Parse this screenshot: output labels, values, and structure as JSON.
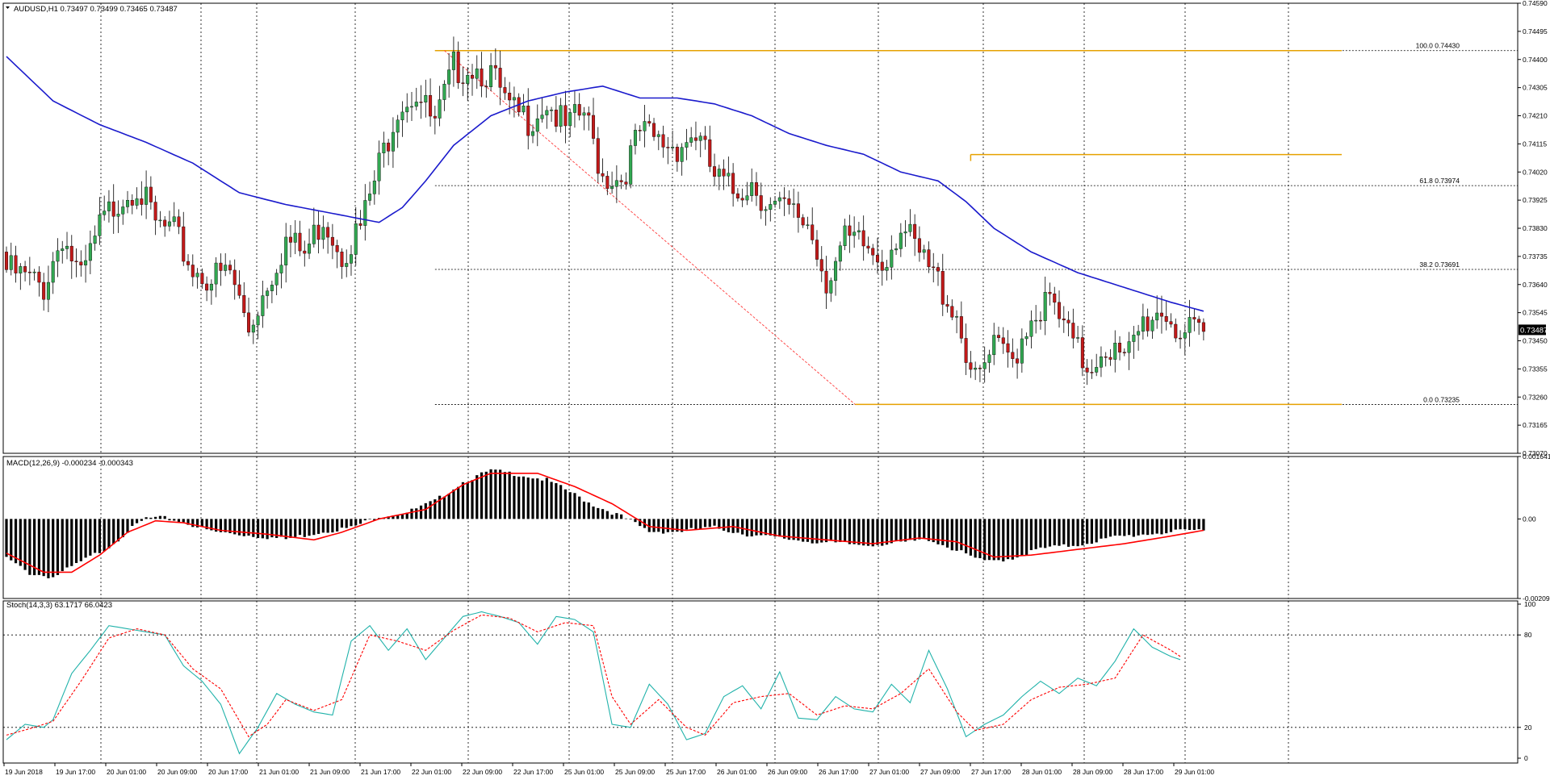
{
  "colors": {
    "background": "#ffffff",
    "grid": "#000000",
    "bull_body": "#32a852",
    "bear_body": "#c21a1a",
    "wick": "#000000",
    "ma_line": "#1a1acc",
    "fib_lines": "#e6a100",
    "fib_trend": "#ff3b3b",
    "macd_hist": "#000000",
    "macd_signal": "#ff0000",
    "stoch_main": "#20b2aa",
    "stoch_signal": "#ff0000",
    "price_badge_bg": "#000000",
    "price_badge_text": "#ffffff"
  },
  "header": {
    "symbol_label": "AUDUSD,H1  0.73497 0.73499 0.73465 0.73487",
    "dropdown_icon": "triangle-down-icon"
  },
  "current_price": "0.73487",
  "chart_data": [
    {
      "type": "candlestick",
      "panel": "price",
      "title": "AUDUSD,H1  0.73497 0.73499 0.73465 0.73487",
      "ylim": [
        0.7307,
        0.7459
      ],
      "y_tick_labels": [
        "0.74590",
        "0.74495",
        "0.74400",
        "0.74305",
        "0.74210",
        "0.74115",
        "0.74020",
        "0.73925",
        "0.73830",
        "0.73735",
        "0.73640",
        "0.73545",
        "0.73450",
        "0.73355",
        "0.73260",
        "0.73165",
        "0.73070"
      ],
      "x_tick_labels": [
        "19 Jun 2018",
        "19 Jun 17:00",
        "20 Jun 01:00",
        "20 Jun 09:00",
        "20 Jun 17:00",
        "21 Jun 01:00",
        "21 Jun 09:00",
        "21 Jun 17:00",
        "22 Jun 01:00",
        "22 Jun 09:00",
        "22 Jun 17:00",
        "25 Jun 01:00",
        "25 Jun 09:00",
        "25 Jun 17:00",
        "26 Jun 01:00",
        "26 Jun 09:00",
        "26 Jun 17:00",
        "27 Jun 01:00",
        "27 Jun 09:00",
        "27 Jun 17:00",
        "28 Jun 01:00",
        "28 Jun 09:00",
        "28 Jun 17:00",
        "29 Jun 01:00"
      ],
      "close_series_knots": [
        [
          0,
          0.7372
        ],
        [
          8,
          0.7366
        ],
        [
          12,
          0.7384
        ],
        [
          16,
          0.7368
        ],
        [
          20,
          0.7386
        ],
        [
          24,
          0.7396
        ],
        [
          28,
          0.7401
        ],
        [
          32,
          0.7387
        ],
        [
          36,
          0.7384
        ],
        [
          40,
          0.7372
        ],
        [
          44,
          0.7369
        ],
        [
          48,
          0.7371
        ],
        [
          52,
          0.7352
        ],
        [
          56,
          0.7368
        ],
        [
          60,
          0.7382
        ],
        [
          64,
          0.7377
        ],
        [
          68,
          0.739
        ],
        [
          72,
          0.7378
        ],
        [
          76,
          0.7386
        ],
        [
          80,
          0.7407
        ],
        [
          84,
          0.7428
        ],
        [
          88,
          0.7432
        ],
        [
          92,
          0.742
        ],
        [
          96,
          0.744
        ],
        [
          100,
          0.7441
        ],
        [
          104,
          0.7438
        ],
        [
          108,
          0.7425
        ],
        [
          112,
          0.7423
        ],
        [
          116,
          0.7429
        ],
        [
          120,
          0.7419
        ],
        [
          124,
          0.7425
        ],
        [
          128,
          0.7404
        ],
        [
          132,
          0.7403
        ],
        [
          136,
          0.7418
        ],
        [
          140,
          0.7415
        ],
        [
          144,
          0.7414
        ],
        [
          148,
          0.7418
        ],
        [
          152,
          0.7403
        ],
        [
          156,
          0.7398
        ],
        [
          160,
          0.7402
        ],
        [
          164,
          0.7393
        ],
        [
          168,
          0.7391
        ],
        [
          172,
          0.7388
        ],
        [
          176,
          0.7369
        ],
        [
          180,
          0.7381
        ],
        [
          184,
          0.738
        ],
        [
          188,
          0.7375
        ],
        [
          192,
          0.7387
        ],
        [
          196,
          0.7376
        ],
        [
          200,
          0.7368
        ],
        [
          204,
          0.7357
        ],
        [
          208,
          0.7333
        ],
        [
          212,
          0.7345
        ],
        [
          216,
          0.7342
        ],
        [
          220,
          0.7357
        ],
        [
          224,
          0.7361
        ],
        [
          228,
          0.7349
        ],
        [
          232,
          0.7339
        ],
        [
          236,
          0.7347
        ],
        [
          240,
          0.734
        ],
        [
          244,
          0.7354
        ],
        [
          248,
          0.7359
        ],
        [
          252,
          0.7351
        ],
        [
          256,
          0.7349
        ]
      ],
      "moving_average": [
        [
          0,
          0.7441
        ],
        [
          10,
          0.7426
        ],
        [
          20,
          0.7418
        ],
        [
          30,
          0.7412
        ],
        [
          40,
          0.7405
        ],
        [
          50,
          0.7395
        ],
        [
          60,
          0.7391
        ],
        [
          70,
          0.7388
        ],
        [
          80,
          0.7385
        ],
        [
          85,
          0.739
        ],
        [
          90,
          0.7399
        ],
        [
          96,
          0.7411
        ],
        [
          104,
          0.7421
        ],
        [
          112,
          0.7426
        ],
        [
          120,
          0.7429
        ],
        [
          128,
          0.7431
        ],
        [
          136,
          0.7427
        ],
        [
          144,
          0.7427
        ],
        [
          152,
          0.7425
        ],
        [
          160,
          0.7421
        ],
        [
          168,
          0.7415
        ],
        [
          176,
          0.7411
        ],
        [
          184,
          0.7408
        ],
        [
          192,
          0.7402
        ],
        [
          200,
          0.7399
        ],
        [
          206,
          0.7392
        ],
        [
          212,
          0.7383
        ],
        [
          220,
          0.7375
        ],
        [
          230,
          0.7368
        ],
        [
          240,
          0.7363
        ],
        [
          250,
          0.7358
        ],
        [
          257,
          0.7355
        ]
      ],
      "fibonacci": {
        "high": 0.7443,
        "low": 0.73235,
        "levels": [
          {
            "label": "100.0  0.74430",
            "value": 0.7443
          },
          {
            "label": "61.8  0.73974",
            "value": 0.73974
          },
          {
            "label": "38.2  0.73691",
            "value": 0.73691
          },
          {
            "label": "0.0  0.73235",
            "value": 0.73235
          }
        ],
        "orange_level": 0.74079
      }
    },
    {
      "type": "histogram",
      "panel": "macd",
      "title": "MACD(12,26,9) -0.000234 -0.000343",
      "ylim": [
        -0.00209,
        0.00164
      ],
      "y_tick_labels": [
        "0.001641",
        "0.00",
        "-0.00209"
      ],
      "hist_knots": [
        [
          0,
          -0.001
        ],
        [
          5,
          -0.0014
        ],
        [
          10,
          -0.0015
        ],
        [
          16,
          -0.0011
        ],
        [
          22,
          -0.0007
        ],
        [
          26,
          -0.0003
        ],
        [
          30,
          5e-05
        ],
        [
          34,
          5e-05
        ],
        [
          38,
          -5e-05
        ],
        [
          44,
          -0.0003
        ],
        [
          52,
          -0.0004
        ],
        [
          60,
          -0.0005
        ],
        [
          68,
          -0.0003
        ],
        [
          74,
          -0.0002
        ],
        [
          80,
          0.0001
        ],
        [
          86,
          0.0002
        ],
        [
          92,
          0.0005
        ],
        [
          98,
          0.001
        ],
        [
          104,
          0.0013
        ],
        [
          110,
          0.0012
        ],
        [
          116,
          0.00105
        ],
        [
          120,
          0.0008
        ],
        [
          126,
          0.0004
        ],
        [
          132,
          0.0001
        ],
        [
          138,
          -0.0003
        ],
        [
          144,
          -0.0003
        ],
        [
          152,
          -0.0002
        ],
        [
          160,
          -0.0004
        ],
        [
          168,
          -0.0005
        ],
        [
          176,
          -0.0006
        ],
        [
          184,
          -0.00065
        ],
        [
          192,
          -0.0006
        ],
        [
          198,
          -0.0005
        ],
        [
          204,
          -0.0008
        ],
        [
          210,
          -0.0011
        ],
        [
          216,
          -0.001
        ],
        [
          222,
          -0.00075
        ],
        [
          230,
          -0.00065
        ],
        [
          238,
          -0.00045
        ],
        [
          246,
          -0.00035
        ],
        [
          252,
          -0.0003
        ],
        [
          257,
          -0.00025
        ]
      ],
      "signal_knots": [
        [
          0,
          -0.0009
        ],
        [
          8,
          -0.0014
        ],
        [
          14,
          -0.0014
        ],
        [
          20,
          -0.00095
        ],
        [
          26,
          -0.00035
        ],
        [
          32,
          -5e-05
        ],
        [
          38,
          -0.0001
        ],
        [
          46,
          -0.0003
        ],
        [
          56,
          -0.0004
        ],
        [
          66,
          -0.00055
        ],
        [
          72,
          -0.00035
        ],
        [
          80,
          0.0
        ],
        [
          90,
          0.00025
        ],
        [
          98,
          0.0009
        ],
        [
          104,
          0.0012
        ],
        [
          114,
          0.0012
        ],
        [
          122,
          0.00085
        ],
        [
          130,
          0.0004
        ],
        [
          138,
          -0.0002
        ],
        [
          146,
          -0.0003
        ],
        [
          156,
          -0.0002
        ],
        [
          166,
          -0.00045
        ],
        [
          176,
          -0.00055
        ],
        [
          186,
          -0.00065
        ],
        [
          196,
          -0.0005
        ],
        [
          204,
          -0.0006
        ],
        [
          212,
          -0.001
        ],
        [
          220,
          -0.00095
        ],
        [
          230,
          -0.0008
        ],
        [
          240,
          -0.00065
        ],
        [
          250,
          -0.00045
        ],
        [
          257,
          -0.0003
        ]
      ]
    },
    {
      "type": "line",
      "panel": "stochastic",
      "title": "Stoch(14,3,3) 63.1717 66.0423",
      "ylim": [
        0,
        100
      ],
      "y_tick_labels": [
        "100",
        "80",
        "20",
        "0"
      ],
      "levels": [
        80,
        20
      ],
      "series": [
        {
          "name": "main",
          "values": [
            [
              0,
              12
            ],
            [
              4,
              22
            ],
            [
              8,
              20
            ],
            [
              10,
              25
            ],
            [
              14,
              55
            ],
            [
              18,
              70
            ],
            [
              22,
              86
            ],
            [
              26,
              84
            ],
            [
              30,
              82
            ],
            [
              34,
              80
            ],
            [
              38,
              60
            ],
            [
              42,
              50
            ],
            [
              46,
              35
            ],
            [
              50,
              3
            ],
            [
              54,
              20
            ],
            [
              58,
              42
            ],
            [
              62,
              35
            ],
            [
              66,
              30
            ],
            [
              70,
              28
            ],
            [
              74,
              76
            ],
            [
              78,
              86
            ],
            [
              82,
              70
            ],
            [
              86,
              84
            ],
            [
              90,
              64
            ],
            [
              94,
              78
            ],
            [
              98,
              92
            ],
            [
              102,
              95
            ],
            [
              106,
              92
            ],
            [
              110,
              88
            ],
            [
              114,
              74
            ],
            [
              118,
              92
            ],
            [
              122,
              90
            ],
            [
              126,
              82
            ],
            [
              130,
              22
            ],
            [
              134,
              20
            ],
            [
              138,
              48
            ],
            [
              142,
              35
            ],
            [
              146,
              12
            ],
            [
              150,
              16
            ],
            [
              154,
              40
            ],
            [
              158,
              47
            ],
            [
              162,
              32
            ],
            [
              166,
              56
            ],
            [
              170,
              26
            ],
            [
              174,
              25
            ],
            [
              178,
              40
            ],
            [
              182,
              32
            ],
            [
              186,
              30
            ],
            [
              190,
              48
            ],
            [
              194,
              36
            ],
            [
              198,
              70
            ],
            [
              202,
              45
            ],
            [
              206,
              14
            ],
            [
              210,
              22
            ],
            [
              214,
              28
            ],
            [
              218,
              40
            ],
            [
              222,
              50
            ],
            [
              226,
              42
            ],
            [
              230,
              52
            ],
            [
              234,
              47
            ],
            [
              238,
              63
            ],
            [
              242,
              84
            ],
            [
              246,
              72
            ],
            [
              250,
              66
            ],
            [
              252,
              64
            ]
          ]
        },
        {
          "name": "signal",
          "values": [
            [
              0,
              15
            ],
            [
              6,
              20
            ],
            [
              10,
              24
            ],
            [
              16,
              50
            ],
            [
              22,
              78
            ],
            [
              28,
              84
            ],
            [
              34,
              80
            ],
            [
              40,
              58
            ],
            [
              46,
              45
            ],
            [
              52,
              14
            ],
            [
              56,
              22
            ],
            [
              60,
              38
            ],
            [
              66,
              31
            ],
            [
              72,
              38
            ],
            [
              78,
              80
            ],
            [
              84,
              76
            ],
            [
              90,
              70
            ],
            [
              96,
              83
            ],
            [
              102,
              93
            ],
            [
              108,
              91
            ],
            [
              114,
              82
            ],
            [
              120,
              88
            ],
            [
              126,
              86
            ],
            [
              130,
              40
            ],
            [
              134,
              22
            ],
            [
              140,
              38
            ],
            [
              146,
              20
            ],
            [
              150,
              15
            ],
            [
              156,
              36
            ],
            [
              162,
              40
            ],
            [
              168,
              42
            ],
            [
              174,
              28
            ],
            [
              180,
              34
            ],
            [
              186,
              32
            ],
            [
              192,
              42
            ],
            [
              198,
              58
            ],
            [
              204,
              30
            ],
            [
              208,
              18
            ],
            [
              214,
              22
            ],
            [
              220,
              38
            ],
            [
              226,
              46
            ],
            [
              232,
              48
            ],
            [
              238,
              52
            ],
            [
              244,
              80
            ],
            [
              250,
              70
            ],
            [
              252,
              66
            ]
          ]
        }
      ]
    }
  ]
}
